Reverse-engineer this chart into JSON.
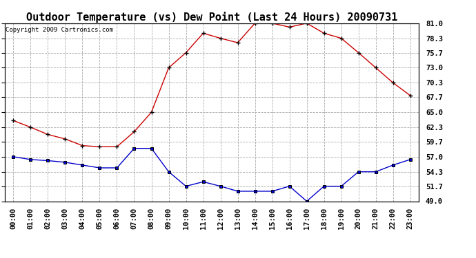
{
  "title": "Outdoor Temperature (vs) Dew Point (Last 24 Hours) 20090731",
  "copyright": "Copyright 2009 Cartronics.com",
  "hours": [
    "00:00",
    "01:00",
    "02:00",
    "03:00",
    "04:00",
    "05:00",
    "06:00",
    "07:00",
    "08:00",
    "09:00",
    "10:00",
    "11:00",
    "12:00",
    "13:00",
    "14:00",
    "15:00",
    "16:00",
    "17:00",
    "18:00",
    "19:00",
    "20:00",
    "21:00",
    "22:00",
    "23:00"
  ],
  "temp": [
    63.5,
    62.3,
    61.0,
    60.2,
    59.0,
    58.8,
    58.8,
    61.5,
    65.0,
    73.0,
    75.7,
    79.2,
    78.3,
    77.5,
    81.0,
    81.0,
    80.3,
    81.0,
    79.2,
    78.3,
    75.7,
    73.0,
    70.3,
    68.0
  ],
  "dew": [
    57.0,
    56.5,
    56.3,
    56.0,
    55.5,
    55.0,
    55.0,
    58.5,
    58.5,
    54.3,
    51.7,
    52.5,
    51.7,
    50.8,
    50.8,
    50.8,
    51.7,
    49.0,
    51.7,
    51.7,
    54.3,
    54.3,
    55.5,
    56.5
  ],
  "temp_color": "#cc0000",
  "dew_color": "#0000cc",
  "bg_color": "#ffffff",
  "grid_color": "#aaaaaa",
  "ylim": [
    49.0,
    81.0
  ],
  "yticks": [
    49.0,
    51.7,
    54.3,
    57.0,
    59.7,
    62.3,
    65.0,
    67.7,
    70.3,
    73.0,
    75.7,
    78.3,
    81.0
  ],
  "title_fontsize": 11,
  "tick_fontsize": 7.5,
  "copyright_fontsize": 6.5
}
